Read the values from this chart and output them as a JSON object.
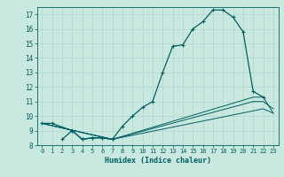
{
  "xlabel": "Humidex (Indice chaleur)",
  "bg_color": "#c8e8e0",
  "grid_color": "#b0d8d0",
  "line_color": "#006060",
  "xlim": [
    -0.5,
    23.5
  ],
  "ylim": [
    8,
    17.5
  ],
  "yticks": [
    8,
    9,
    10,
    11,
    12,
    13,
    14,
    15,
    16,
    17
  ],
  "xticks": [
    0,
    1,
    2,
    3,
    4,
    5,
    6,
    7,
    8,
    9,
    10,
    11,
    12,
    13,
    14,
    15,
    16,
    17,
    18,
    19,
    20,
    21,
    22,
    23
  ],
  "series_main": {
    "x": [
      0,
      1,
      3,
      4,
      5,
      6,
      7,
      8,
      9,
      10,
      11,
      12,
      13,
      14,
      15,
      16,
      17,
      18,
      19,
      20,
      21,
      22
    ],
    "y": [
      9.5,
      9.5,
      9.0,
      8.4,
      8.5,
      8.5,
      8.4,
      9.3,
      10.0,
      10.6,
      11.0,
      13.0,
      14.8,
      14.9,
      16.0,
      16.5,
      17.3,
      17.3,
      16.8,
      15.8,
      11.7,
      11.3
    ]
  },
  "series_left": {
    "x": [
      2,
      3,
      4,
      5,
      6,
      7
    ],
    "y": [
      8.4,
      9.0,
      8.4,
      8.5,
      8.5,
      8.4
    ]
  },
  "lines": [
    {
      "x": [
        0,
        7,
        21,
        22,
        23
      ],
      "y": [
        9.5,
        8.4,
        11.3,
        11.3,
        10.2
      ]
    },
    {
      "x": [
        0,
        7,
        21,
        22,
        23
      ],
      "y": [
        9.5,
        8.4,
        11.0,
        11.0,
        10.5
      ]
    },
    {
      "x": [
        0,
        7,
        22,
        23
      ],
      "y": [
        9.5,
        8.4,
        10.5,
        10.2
      ]
    }
  ]
}
